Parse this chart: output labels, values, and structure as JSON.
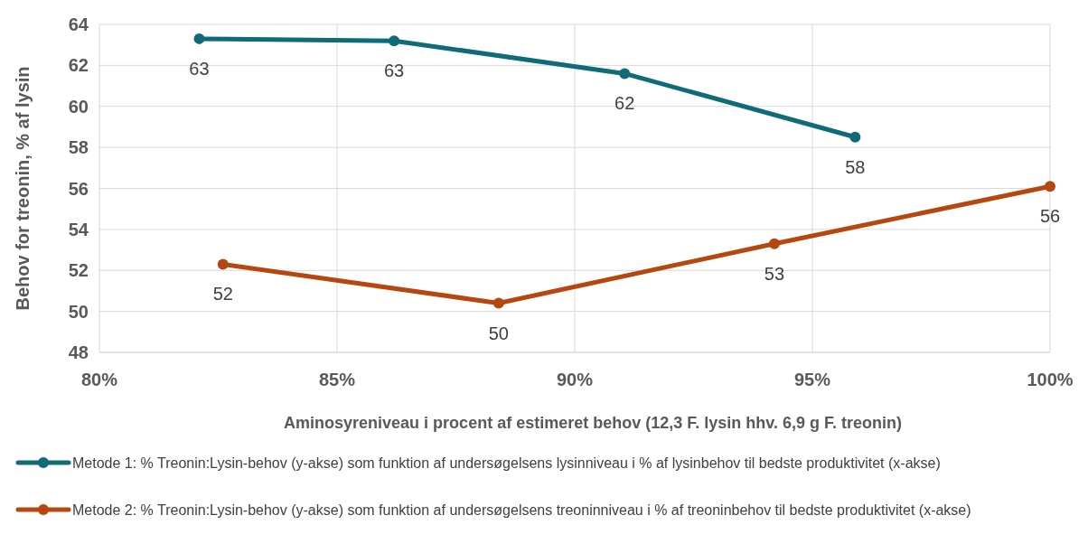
{
  "chart_data": {
    "type": "line",
    "xlabel": "Aminosyreniveau i procent af estimeret behov (12,3 F. lysin hhv. 6,9 g F. treonin)",
    "ylabel": "Behov for treonin, % af lysin",
    "xlim": [
      80,
      100
    ],
    "xticks": [
      {
        "value": 80,
        "label": "80%"
      },
      {
        "value": 85,
        "label": "85%"
      },
      {
        "value": 90,
        "label": "90%"
      },
      {
        "value": 95,
        "label": "95%"
      },
      {
        "value": 100,
        "label": "100%"
      }
    ],
    "ylim": [
      48,
      64
    ],
    "yticks": [
      48,
      50,
      52,
      54,
      56,
      58,
      60,
      62,
      64
    ],
    "grid": true,
    "legend": "bottom",
    "marker": "circle",
    "line_style": "solid",
    "series": [
      {
        "name": "Metode 1: % Treonin:Lysin-behov (y-akse) som funktion af undersøgelsens lysinniveau i % af lysinbehov til bedste produktivitet (x-akse)",
        "color": "#0f6b78",
        "x": [
          82.1,
          86.2,
          91.05,
          95.9
        ],
        "values": [
          63.3,
          63.2,
          61.6,
          58.5
        ],
        "value_labels": [
          "63",
          "63",
          "62",
          "58"
        ]
      },
      {
        "name": "Metode 2: % Treonin:Lysin-behov (y-akse) som funktion af undersøgelsens treoninniveau i % af treoninbehov til bedste produktivitet (x-akse)",
        "color": "#b5470f",
        "x": [
          82.6,
          88.4,
          94.2,
          100
        ],
        "values": [
          52.3,
          50.4,
          53.3,
          56.1
        ],
        "value_labels": [
          "52",
          "50",
          "53",
          "56"
        ]
      }
    ]
  }
}
